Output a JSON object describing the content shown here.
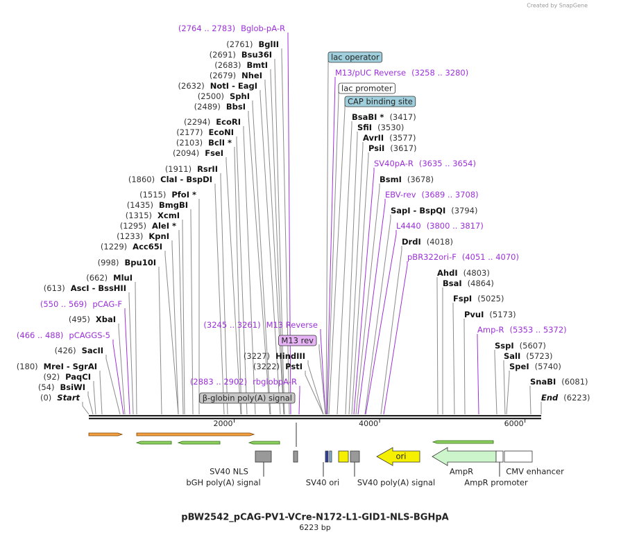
{
  "watermark": "Created by SnapGene",
  "title": "pBW2542_pCAG-PV1-VCre-N172-L1-GID1-NLS-BGHpA",
  "subtitle": "6223 bp",
  "ruler_ticks": [
    2000,
    4000,
    6000
  ],
  "left": [
    {
      "position": "(2764 .. 2783)",
      "name": "Bglob-pA-R",
      "color": "#9b30d9"
    },
    {
      "position": "(2761)",
      "name": "BglII"
    },
    {
      "position": "(2691)",
      "name": "Bsu36I"
    },
    {
      "position": "(2683)",
      "name": "BmtI"
    },
    {
      "position": "(2679)",
      "name": "NheI"
    },
    {
      "position": "(2632)",
      "name": "NotI  -  EagI"
    },
    {
      "position": "(2500)",
      "name": "SphI"
    },
    {
      "position": "(2489)",
      "name": "BbsI"
    },
    {
      "position": "(2294)",
      "name": "EcoRI"
    },
    {
      "position": "(2177)",
      "name": "EcoNI"
    },
    {
      "position": "(2103)",
      "name": "BclI *"
    },
    {
      "position": "(2094)",
      "name": "FseI"
    },
    {
      "position": "(1911)",
      "name": "RsrII"
    },
    {
      "position": "(1860)",
      "name": "ClaI  -  BspDI"
    },
    {
      "position": "(1515)",
      "name": "PfoI *"
    },
    {
      "position": "(1435)",
      "name": "BmgBI"
    },
    {
      "position": "(1315)",
      "name": "XcmI"
    },
    {
      "position": "(1295)",
      "name": "AleI *"
    },
    {
      "position": "(1233)",
      "name": "KpnI"
    },
    {
      "position": "(1229)",
      "name": "Acc65I"
    },
    {
      "position": "(998)",
      "name": "Bpu10I"
    },
    {
      "position": "(662)",
      "name": "MluI"
    },
    {
      "position": "(613)",
      "name": "AscI  -  BssHII"
    },
    {
      "position": "(550 .. 569)",
      "name": "pCAG-F",
      "color": "#9b30d9"
    },
    {
      "position": "(495)",
      "name": "XbaI"
    },
    {
      "position": "(466 .. 488)",
      "name": "pCAGGS-5",
      "color": "#9b30d9"
    },
    {
      "position": "(426)",
      "name": "SacII"
    },
    {
      "position": "(180)",
      "name": "MreI  -  SgrAI"
    },
    {
      "position": "(92)",
      "name": "PaqCI"
    },
    {
      "position": "(54)",
      "name": "BsiWI"
    }
  ],
  "start": {
    "position": "(0)",
    "name": "Start"
  },
  "middle": [
    {
      "position": "(3245 .. 3261)",
      "name": "M13 Reverse",
      "color": "#9b30d9"
    },
    {
      "name": "M13 rev",
      "box": "#e6b3f5"
    },
    {
      "position": "(3227)",
      "name": "HindIII"
    },
    {
      "position": "(3222)",
      "name": "PstI"
    },
    {
      "position": "(2883 .. 2902)",
      "name": "rbglobpA-R",
      "color": "#9b30d9"
    },
    {
      "name": "β-globin poly(A) signal",
      "box": "#c8c8c8"
    }
  ],
  "right": [
    {
      "name": "lac operator",
      "box": "#9fcfdc"
    },
    {
      "name": "M13/pUC Reverse",
      "position": "(3258 .. 3280)",
      "color": "#9b30d9"
    },
    {
      "name": "lac promoter",
      "box": "#ffffff"
    },
    {
      "name": "CAP binding site",
      "box": "#9fcfdc"
    },
    {
      "name": "BsaBI *",
      "position": "(3417)"
    },
    {
      "name": "SfiI",
      "position": "(3530)"
    },
    {
      "name": "AvrII",
      "position": "(3577)"
    },
    {
      "name": "PsiI",
      "position": "(3617)"
    },
    {
      "name": "SV40pA-R",
      "position": "(3635 .. 3654)",
      "color": "#9b30d9"
    },
    {
      "name": "BsmI",
      "position": "(3678)"
    },
    {
      "name": "EBV-rev",
      "position": "(3689 .. 3708)",
      "color": "#9b30d9"
    },
    {
      "name": "SapI  -  BspQI",
      "position": "(3794)"
    },
    {
      "name": "L4440",
      "position": "(3800 .. 3817)",
      "color": "#9b30d9"
    },
    {
      "name": "DrdI",
      "position": "(4018)"
    },
    {
      "name": "pBR322ori-F",
      "position": "(4051 .. 4070)",
      "color": "#9b30d9"
    },
    {
      "name": "AhdI",
      "position": "(4803)"
    },
    {
      "name": "BsaI",
      "position": "(4864)"
    },
    {
      "name": "FspI",
      "position": "(5025)"
    },
    {
      "name": "PvuI",
      "position": "(5173)"
    },
    {
      "name": "Amp-R",
      "position": "(5353 .. 5372)",
      "color": "#9b30d9"
    },
    {
      "name": "SspI",
      "position": "(5607)"
    },
    {
      "name": "SalI",
      "position": "(5723)"
    },
    {
      "name": "SpeI",
      "position": "(5740)"
    },
    {
      "name": "SnaBI",
      "position": "(6081)"
    }
  ],
  "end": {
    "name": "End",
    "position": "(6223)"
  },
  "features": {
    "ori": "ori",
    "sv40_nls": "SV40 NLS",
    "bgh": "bGH poly(A) signal",
    "sv40_ori": "SV40 ori",
    "sv40_pa": "SV40 poly(A) signal",
    "ampr": "AmpR",
    "ampr_promoter": "AmpR promoter",
    "cmv": "CMV enhancer"
  }
}
